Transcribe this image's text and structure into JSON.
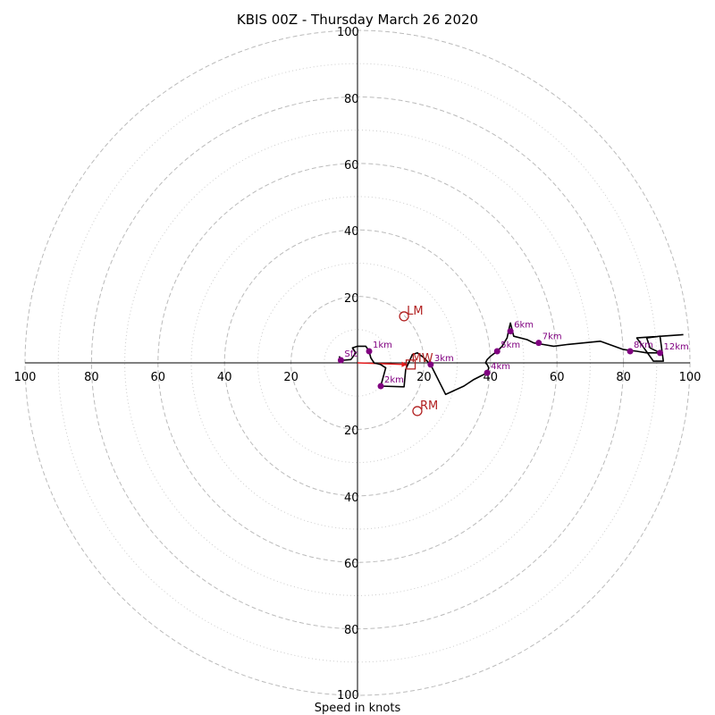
{
  "chart_data": {
    "type": "hodograph",
    "title": "KBIS 00Z - Thursday March 26 2020",
    "xlabel": "Speed in knots",
    "ylabel": "",
    "xlim": [
      -100,
      100
    ],
    "ylim": [
      -100,
      100
    ],
    "ring_major": [
      20,
      40,
      60,
      80,
      100
    ],
    "ring_minor": [
      10,
      30,
      50,
      70,
      90
    ],
    "tick_labels": [
      "100",
      "80",
      "60",
      "40",
      "20",
      "20",
      "40",
      "60",
      "80",
      "100"
    ],
    "colors": {
      "trace": "#000000",
      "heights": "#800080",
      "motion": "#b22222",
      "arrow": "#e41a1c",
      "rings": "#bbbbbb"
    },
    "trace": {
      "name": "",
      "points": [
        [
          -5.5,
          2.0
        ],
        [
          -5.0,
          1.0
        ],
        [
          -4.0,
          0.8
        ],
        [
          -2.0,
          1.0
        ],
        [
          -0.5,
          3.0
        ],
        [
          -1.5,
          4.5
        ],
        [
          0.0,
          5.0
        ],
        [
          2.5,
          5.0
        ],
        [
          3.5,
          3.5
        ],
        [
          4.0,
          1.5
        ],
        [
          5.0,
          0.0
        ],
        [
          7.0,
          -0.5
        ],
        [
          8.5,
          -1.5
        ],
        [
          7.0,
          -7.0
        ],
        [
          14.0,
          -7.2
        ],
        [
          14.5,
          -2.0
        ],
        [
          16.5,
          2.5
        ],
        [
          18.0,
          3.0
        ],
        [
          20.0,
          1.5
        ],
        [
          22.0,
          -0.5
        ],
        [
          26.5,
          -9.5
        ],
        [
          32.0,
          -7.0
        ],
        [
          35.0,
          -5.0
        ],
        [
          37.0,
          -4.0
        ],
        [
          39.0,
          -3.0
        ],
        [
          39.5,
          -1.5
        ],
        [
          39.0,
          -0.5
        ],
        [
          38.5,
          0.0
        ],
        [
          39.0,
          1.0
        ],
        [
          40.0,
          2.0
        ],
        [
          42.0,
          3.5
        ],
        [
          43.5,
          5.0
        ],
        [
          45.0,
          7.5
        ],
        [
          45.5,
          10.0
        ],
        [
          46.0,
          12.0
        ],
        [
          47.0,
          8.0
        ],
        [
          51.0,
          7.0
        ],
        [
          53.0,
          6.0
        ],
        [
          56.0,
          5.5
        ],
        [
          59.0,
          5.0
        ],
        [
          63.0,
          5.5
        ],
        [
          73.0,
          6.5
        ],
        [
          80.0,
          4.0
        ],
        [
          84.0,
          3.5
        ],
        [
          87.0,
          3.0
        ],
        [
          91.0,
          3.0
        ],
        [
          88.0,
          4.5
        ],
        [
          87.0,
          7.5
        ],
        [
          91.0,
          8.0
        ],
        [
          92.0,
          0.5
        ],
        [
          89.0,
          0.5
        ],
        [
          84.0,
          7.5
        ],
        [
          98.0,
          8.5
        ]
      ]
    },
    "heights": [
      {
        "label": "Sfc",
        "x": -5.0,
        "y": 0.8
      },
      {
        "label": "1km",
        "x": 3.5,
        "y": 3.5
      },
      {
        "label": "2km",
        "x": 7.0,
        "y": -7.0
      },
      {
        "label": "3km",
        "x": 22.0,
        "y": -0.5
      },
      {
        "label": "4km",
        "x": 39.0,
        "y": -3.0
      },
      {
        "label": "5km",
        "x": 42.0,
        "y": 3.5
      },
      {
        "label": "6km",
        "x": 46.0,
        "y": 9.5
      },
      {
        "label": "7km",
        "x": 54.5,
        "y": 6.0
      },
      {
        "label": "8km",
        "x": 82.0,
        "y": 3.5
      },
      {
        "label": "12km",
        "x": 91.0,
        "y": 3.0
      }
    ],
    "storm_motion": {
      "LM": {
        "label": "LM",
        "x": 14.0,
        "y": 14.0
      },
      "RM": {
        "label": "RM",
        "x": 18.0,
        "y": -14.5
      },
      "MW": {
        "label": "MW",
        "x": 16.0,
        "y": -0.5
      },
      "arrow": {
        "from": [
          0.0,
          0.0
        ],
        "to": [
          15.0,
          -0.5
        ]
      }
    }
  }
}
